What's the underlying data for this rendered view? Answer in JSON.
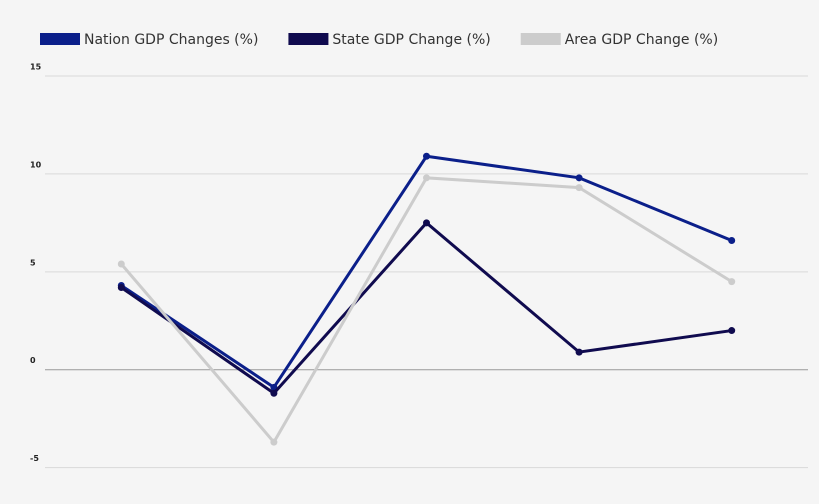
{
  "chart_data": {
    "type": "line",
    "categories": [
      null,
      null,
      null,
      null,
      null
    ],
    "series": [
      {
        "name": "Nation GDP Changes (%)",
        "color": "#0b1f8a",
        "values": [
          4.3,
          -0.9,
          10.9,
          9.8,
          6.6
        ]
      },
      {
        "name": "State GDP Change (%)",
        "color": "#100b4f",
        "values": [
          4.2,
          -1.2,
          7.5,
          0.9,
          2.0
        ]
      },
      {
        "name": "Area GDP Change (%)",
        "color": "#cccccc",
        "values": [
          5.4,
          -3.7,
          9.8,
          9.3,
          4.5
        ]
      }
    ],
    "ylim": [
      -6.5,
      15
    ],
    "yticks": [
      -5,
      0,
      5,
      10,
      15
    ],
    "grid": true,
    "legend": "top"
  }
}
